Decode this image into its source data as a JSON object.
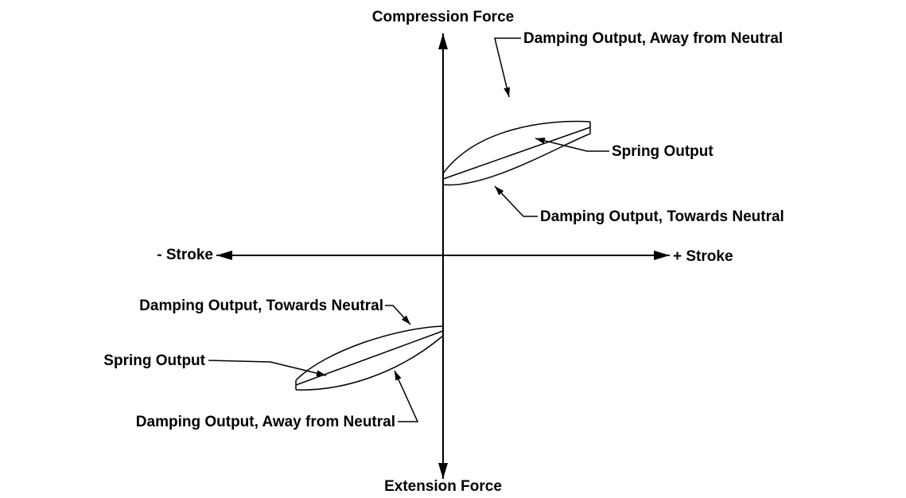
{
  "axes": {
    "top": "Compression Force",
    "bottom": "Extension Force",
    "left": "- Stroke",
    "right": "+ Stroke"
  },
  "upper_loop": {
    "top_curve": "Damping Output, Away from Neutral",
    "middle_line": "Spring Output",
    "bottom_curve": "Damping Output, Towards Neutral"
  },
  "lower_loop": {
    "top_curve": "Damping Output, Towards Neutral",
    "middle_line": "Spring Output",
    "bottom_curve": "Damping Output, Away from Neutral"
  }
}
